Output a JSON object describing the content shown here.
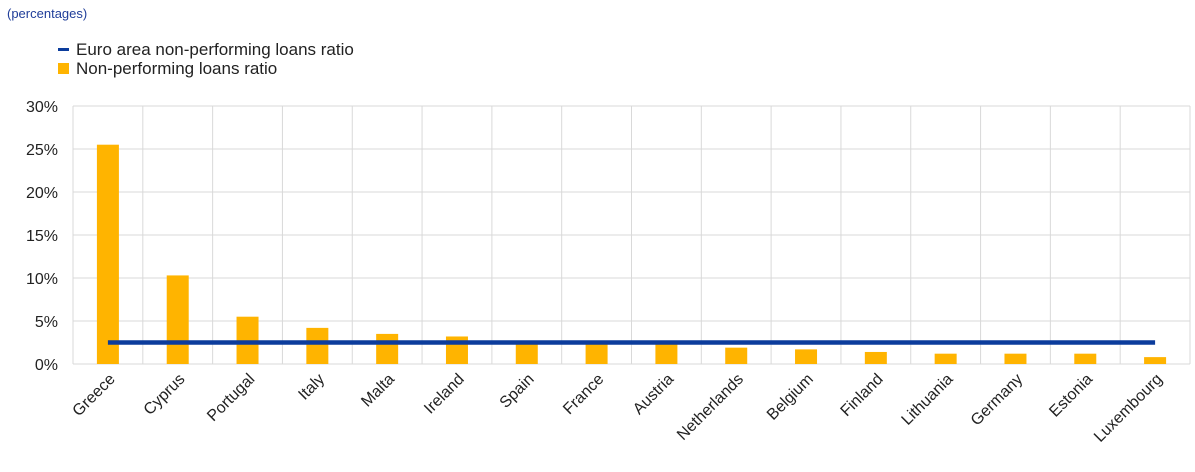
{
  "chart_data": {
    "type": "bar",
    "subtitle": "(percentages)",
    "categories": [
      "Greece",
      "Cyprus",
      "Portugal",
      "Italy",
      "Malta",
      "Ireland",
      "Spain",
      "France",
      "Austria",
      "Netherlands",
      "Belgium",
      "Finland",
      "Lithuania",
      "Germany",
      "Estonia",
      "Luxembourg"
    ],
    "series": [
      {
        "name": "Non-performing loans ratio",
        "kind": "bar",
        "color": "#ffb400",
        "values": [
          25.5,
          10.3,
          5.5,
          4.2,
          3.5,
          3.2,
          2.5,
          2.5,
          2.3,
          1.9,
          1.7,
          1.4,
          1.2,
          1.2,
          1.2,
          0.8
        ]
      },
      {
        "name": "Euro area non-performing loans ratio",
        "kind": "line",
        "color": "#0b3c9c",
        "value": 2.5
      }
    ],
    "yticks": [
      "0%",
      "5%",
      "10%",
      "15%",
      "20%",
      "25%",
      "30%"
    ],
    "ylim": [
      0,
      30
    ],
    "grid": true,
    "legend_position": "top-left"
  }
}
